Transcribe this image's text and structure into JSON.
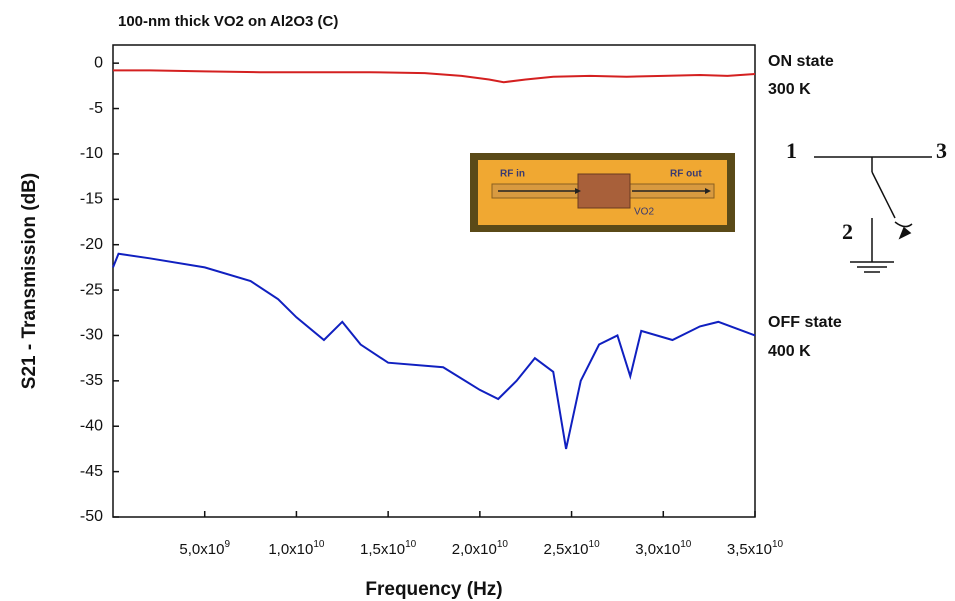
{
  "chart_data": {
    "type": "line",
    "title": "100-nm thick VO2 on Al2O3 (C)",
    "x_label": "Frequency (Hz)",
    "y_label": "S21 - Transmission (dB)",
    "xlim": [
      0,
      35000000000
    ],
    "ylim": [
      -50,
      2
    ],
    "xticks": [
      {
        "value": 5000000000,
        "label": "5,0x10",
        "exp": "9"
      },
      {
        "value": 10000000000,
        "label": "1,0x10",
        "exp": "10"
      },
      {
        "value": 15000000000,
        "label": "1,5x10",
        "exp": "10"
      },
      {
        "value": 20000000000,
        "label": "2,0x10",
        "exp": "10"
      },
      {
        "value": 25000000000,
        "label": "2,5x10",
        "exp": "10"
      },
      {
        "value": 30000000000,
        "label": "3,0x10",
        "exp": "10"
      },
      {
        "value": 35000000000,
        "label": "3,5x10",
        "exp": "10"
      }
    ],
    "yticks": [
      0,
      -5,
      -10,
      -15,
      -20,
      -25,
      -30,
      -35,
      -40,
      -45,
      -50
    ],
    "series": [
      {
        "name": "ON state",
        "color": "#d42020",
        "x": [
          0,
          2000000000,
          5000000000,
          8000000000,
          11000000000,
          14000000000,
          17000000000,
          19000000000,
          20500000000,
          21300000000,
          22500000000,
          24000000000,
          26000000000,
          28000000000,
          30000000000,
          32000000000,
          33500000000,
          35000000000
        ],
        "values": [
          -0.8,
          -0.8,
          -0.9,
          -1.0,
          -1.0,
          -1.0,
          -1.1,
          -1.4,
          -1.8,
          -2.1,
          -1.8,
          -1.5,
          -1.4,
          -1.5,
          -1.4,
          -1.3,
          -1.4,
          -1.2
        ]
      },
      {
        "name": "OFF state",
        "color": "#1020c0",
        "x": [
          0,
          300000000,
          2000000000,
          5000000000,
          7500000000,
          9000000000,
          10000000000,
          11500000000,
          12500000000,
          13500000000,
          15000000000,
          18000000000,
          20000000000,
          21000000000,
          22000000000,
          23000000000,
          24000000000,
          24700000000,
          25500000000,
          26500000000,
          27500000000,
          28200000000,
          28800000000,
          30500000000,
          32000000000,
          33000000000,
          35000000000
        ],
        "values": [
          -22.5,
          -21,
          -21.5,
          -22.5,
          -24,
          -26,
          -28,
          -30.5,
          -28.5,
          -31,
          -33,
          -33.5,
          -36,
          -37,
          -35,
          -32.5,
          -34,
          -42.5,
          -35,
          -31,
          -30,
          -34.5,
          -29.5,
          -30.5,
          -29,
          -28.5,
          -30
        ]
      }
    ],
    "annotations": {
      "on_state": "ON state",
      "on_temp": "300 K",
      "off_state": "OFF state",
      "off_temp": "400 K"
    },
    "inset": {
      "rf_in": "RF in",
      "rf_out": "RF out",
      "vo2": "VO2"
    },
    "circuit": {
      "port1": "1",
      "port2": "2",
      "port3": "3"
    }
  }
}
